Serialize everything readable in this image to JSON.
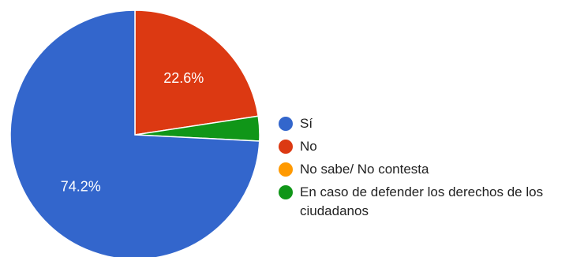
{
  "chart_data": {
    "type": "pie",
    "title": "",
    "slices": [
      {
        "label": "Sí",
        "value": 74.2,
        "display": "74.2%",
        "color": "#3366cc"
      },
      {
        "label": "No",
        "value": 22.6,
        "display": "22.6%",
        "color": "#dc3912"
      },
      {
        "label": "No sabe/ No contesta",
        "value": 0.0,
        "display": "",
        "color": "#ff9900"
      },
      {
        "label": "En caso de defender los derechos de los ciudadanos",
        "value": 3.2,
        "display": "",
        "color": "#109618"
      }
    ],
    "legend_position": "right",
    "start_angle": "top, clockwise order: No, En caso de..., Sí"
  }
}
